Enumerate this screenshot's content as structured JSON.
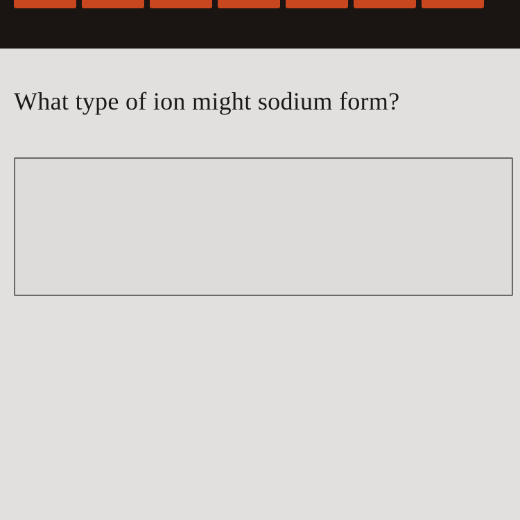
{
  "topbar": {
    "background_color": "#1a1512",
    "tab_color": "#c8471f",
    "tab_count": 7
  },
  "content": {
    "background_color": "#e2e0de",
    "question": "What type of ion might sodium form?",
    "question_fontsize": 36,
    "question_color": "#1c1a18",
    "answer_value": "",
    "answer_placeholder": "",
    "answer_border_color": "#6b6866",
    "answer_background": "#dedcda"
  }
}
